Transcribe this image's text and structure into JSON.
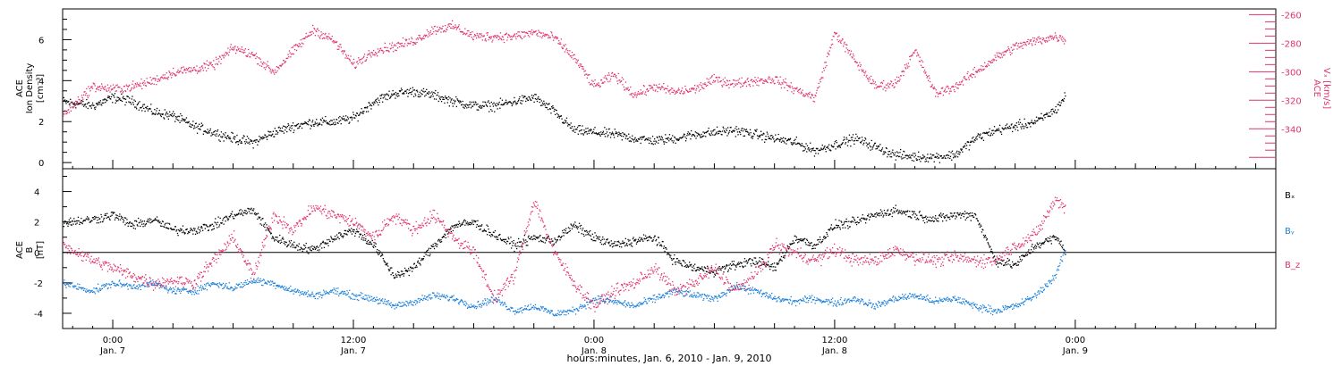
{
  "colors": {
    "black": "#000000",
    "pink": "#e0336a",
    "blue": "#1a7fd8"
  },
  "time_axis": {
    "label": "hours:minutes, Jan.  6, 2010 - Jan.  9, 2010",
    "range_hours": [
      -2.5,
      58
    ],
    "ticks": [
      {
        "hours": 0,
        "time": "0:00",
        "date": "Jan. 7"
      },
      {
        "hours": 12,
        "time": "12:00",
        "date": "Jan. 7"
      },
      {
        "hours": 24,
        "time": "0:00",
        "date": "Jan. 8"
      },
      {
        "hours": 36,
        "time": "12:00",
        "date": "Jan. 8"
      },
      {
        "hours": 48,
        "time": "0:00",
        "date": "Jan. 9"
      }
    ]
  },
  "chart_data": [
    {
      "type": "scatter",
      "panel": "top",
      "ylabel_lines": [
        "ACE",
        "Ion Density",
        "[cm⁻³]"
      ],
      "ylim": [
        -0.3,
        7.5
      ],
      "yticks": [
        0,
        2,
        4,
        6
      ],
      "right_axis": {
        "label_lines": [
          "ACE",
          "Vₓ [km/s]"
        ],
        "ylim": [
          -368,
          -256
        ],
        "ticks": [
          -260,
          -280,
          -300,
          -320,
          -340
        ]
      },
      "series": [
        {
          "name": "",
          "axis": "left",
          "color": "#000000",
          "x": [
            -2.5,
            -1,
            0,
            1,
            2,
            3,
            4,
            5,
            6,
            7,
            8,
            9,
            10,
            11,
            12,
            13,
            14,
            15,
            16,
            17,
            18,
            19,
            20,
            21,
            22,
            23,
            24,
            25,
            26,
            27,
            28,
            29,
            30,
            31,
            32,
            33,
            34,
            35,
            36,
            37,
            38,
            39,
            40,
            41,
            42,
            43,
            44,
            45,
            46,
            47,
            47.5
          ],
          "y": [
            3.0,
            2.8,
            3.2,
            3.0,
            2.5,
            2.3,
            1.8,
            1.5,
            1.2,
            1.0,
            1.5,
            1.8,
            2.0,
            2.0,
            2.2,
            3.0,
            3.4,
            3.5,
            3.3,
            3.0,
            2.8,
            2.8,
            3.0,
            3.2,
            2.5,
            1.6,
            1.5,
            1.4,
            1.2,
            1.1,
            1.2,
            1.4,
            1.5,
            1.6,
            1.4,
            1.2,
            1.0,
            0.6,
            0.9,
            1.2,
            0.8,
            0.4,
            0.3,
            0.3,
            0.4,
            1.2,
            1.6,
            1.8,
            2.0,
            2.6,
            3.3
          ]
        },
        {
          "name": "",
          "axis": "right",
          "color": "#e0336a",
          "x": [
            -2.5,
            -1,
            0,
            1,
            2,
            3,
            4,
            5,
            6,
            7,
            8,
            9,
            10,
            11,
            12,
            13,
            14,
            15,
            16,
            17,
            18,
            19,
            20,
            21,
            22,
            23,
            24,
            25,
            26,
            27,
            28,
            29,
            30,
            31,
            32,
            33,
            34,
            35,
            36,
            37,
            38,
            39,
            40,
            41,
            42,
            43,
            44,
            45,
            46,
            47,
            47.5
          ],
          "y": [
            -330,
            -310,
            -312,
            -310,
            -306,
            -300,
            -298,
            -295,
            -283,
            -288,
            -300,
            -285,
            -270,
            -278,
            -295,
            -285,
            -282,
            -278,
            -270,
            -268,
            -275,
            -275,
            -275,
            -272,
            -276,
            -290,
            -310,
            -302,
            -316,
            -310,
            -314,
            -312,
            -305,
            -308,
            -306,
            -305,
            -312,
            -318,
            -272,
            -292,
            -310,
            -308,
            -285,
            -315,
            -310,
            -300,
            -290,
            -282,
            -278,
            -275,
            -277
          ]
        }
      ]
    },
    {
      "type": "scatter",
      "panel": "bottom",
      "ylabel_lines": [
        "ACE",
        "B",
        "[nT]"
      ],
      "ylim": [
        -5,
        5.5
      ],
      "yticks": [
        -4,
        -2,
        0,
        2,
        4
      ],
      "series": [
        {
          "name": "Bₓ",
          "color": "#000000",
          "x": [
            -2.5,
            -1,
            0,
            1,
            2,
            3,
            4,
            5,
            6,
            7,
            8,
            9,
            10,
            11,
            12,
            13,
            14,
            15,
            16,
            17,
            18,
            19,
            20,
            21,
            22,
            23,
            24,
            25,
            26,
            27,
            28,
            29,
            30,
            31,
            32,
            33,
            34,
            35,
            36,
            37,
            38,
            39,
            40,
            41,
            42,
            43,
            44,
            45,
            46,
            47,
            47.5
          ],
          "y": [
            2.0,
            2.2,
            2.5,
            1.8,
            2.2,
            1.5,
            1.5,
            1.8,
            2.5,
            2.8,
            1.0,
            0.5,
            0.2,
            1.0,
            1.5,
            0.5,
            -1.5,
            -1.0,
            0.5,
            1.8,
            2.0,
            1.2,
            0.5,
            1.0,
            0.8,
            1.8,
            1.0,
            0.5,
            0.8,
            1.0,
            -0.5,
            -1.0,
            -1.2,
            -0.8,
            -0.5,
            -1.0,
            1.0,
            0.5,
            1.8,
            2.0,
            2.5,
            2.8,
            2.5,
            2.2,
            2.5,
            2.5,
            -0.5,
            -0.8,
            0.5,
            1.0,
            0.2
          ]
        },
        {
          "name": "Bᵧ",
          "color": "#1a7fd8",
          "x": [
            -2.5,
            -1,
            0,
            1,
            2,
            3,
            4,
            5,
            6,
            7,
            8,
            9,
            10,
            11,
            12,
            13,
            14,
            15,
            16,
            17,
            18,
            19,
            20,
            21,
            22,
            23,
            24,
            25,
            26,
            27,
            28,
            29,
            30,
            31,
            32,
            33,
            34,
            35,
            36,
            37,
            38,
            39,
            40,
            41,
            42,
            43,
            44,
            45,
            46,
            47,
            47.5
          ],
          "y": [
            -2.0,
            -2.5,
            -2.0,
            -2.2,
            -2.0,
            -2.5,
            -2.5,
            -2.0,
            -2.3,
            -1.8,
            -2.0,
            -2.5,
            -2.8,
            -2.5,
            -2.8,
            -3.0,
            -3.5,
            -3.2,
            -2.8,
            -3.0,
            -3.5,
            -3.0,
            -3.8,
            -3.5,
            -4.0,
            -3.8,
            -3.0,
            -3.2,
            -3.5,
            -3.0,
            -2.5,
            -2.8,
            -3.0,
            -2.2,
            -2.5,
            -3.0,
            -3.2,
            -3.0,
            -3.3,
            -3.0,
            -3.5,
            -3.0,
            -2.8,
            -3.2,
            -3.0,
            -3.5,
            -3.8,
            -3.5,
            -2.8,
            -1.5,
            0.3
          ]
        },
        {
          "name": "B_z",
          "color": "#e0336a",
          "x": [
            -2.5,
            -1,
            0,
            1,
            2,
            3,
            4,
            5,
            6,
            7,
            8,
            9,
            10,
            11,
            12,
            13,
            14,
            15,
            16,
            17,
            18,
            19,
            20,
            21,
            22,
            23,
            24,
            25,
            26,
            27,
            28,
            29,
            30,
            31,
            32,
            33,
            34,
            35,
            36,
            37,
            38,
            39,
            40,
            41,
            42,
            43,
            44,
            45,
            46,
            47,
            47.5
          ],
          "y": [
            0.5,
            -0.5,
            -1.0,
            -1.5,
            -2.0,
            -1.8,
            -2.0,
            -0.5,
            1.0,
            -1.5,
            2.5,
            1.5,
            3.0,
            2.5,
            2.0,
            1.0,
            2.5,
            1.5,
            2.5,
            1.0,
            0,
            -3.0,
            -1.5,
            3.5,
            0,
            -2.0,
            -3.5,
            -2.5,
            -2.0,
            -1.0,
            -2.5,
            -2.0,
            -1.0,
            -2.5,
            -1.5,
            0.5,
            0,
            -0.5,
            0.2,
            -0.5,
            -0.5,
            0.2,
            -0.3,
            -0.5,
            -0.3,
            -0.5,
            -0.5,
            0.5,
            1.2,
            3.5,
            3.0
          ]
        }
      ]
    }
  ]
}
